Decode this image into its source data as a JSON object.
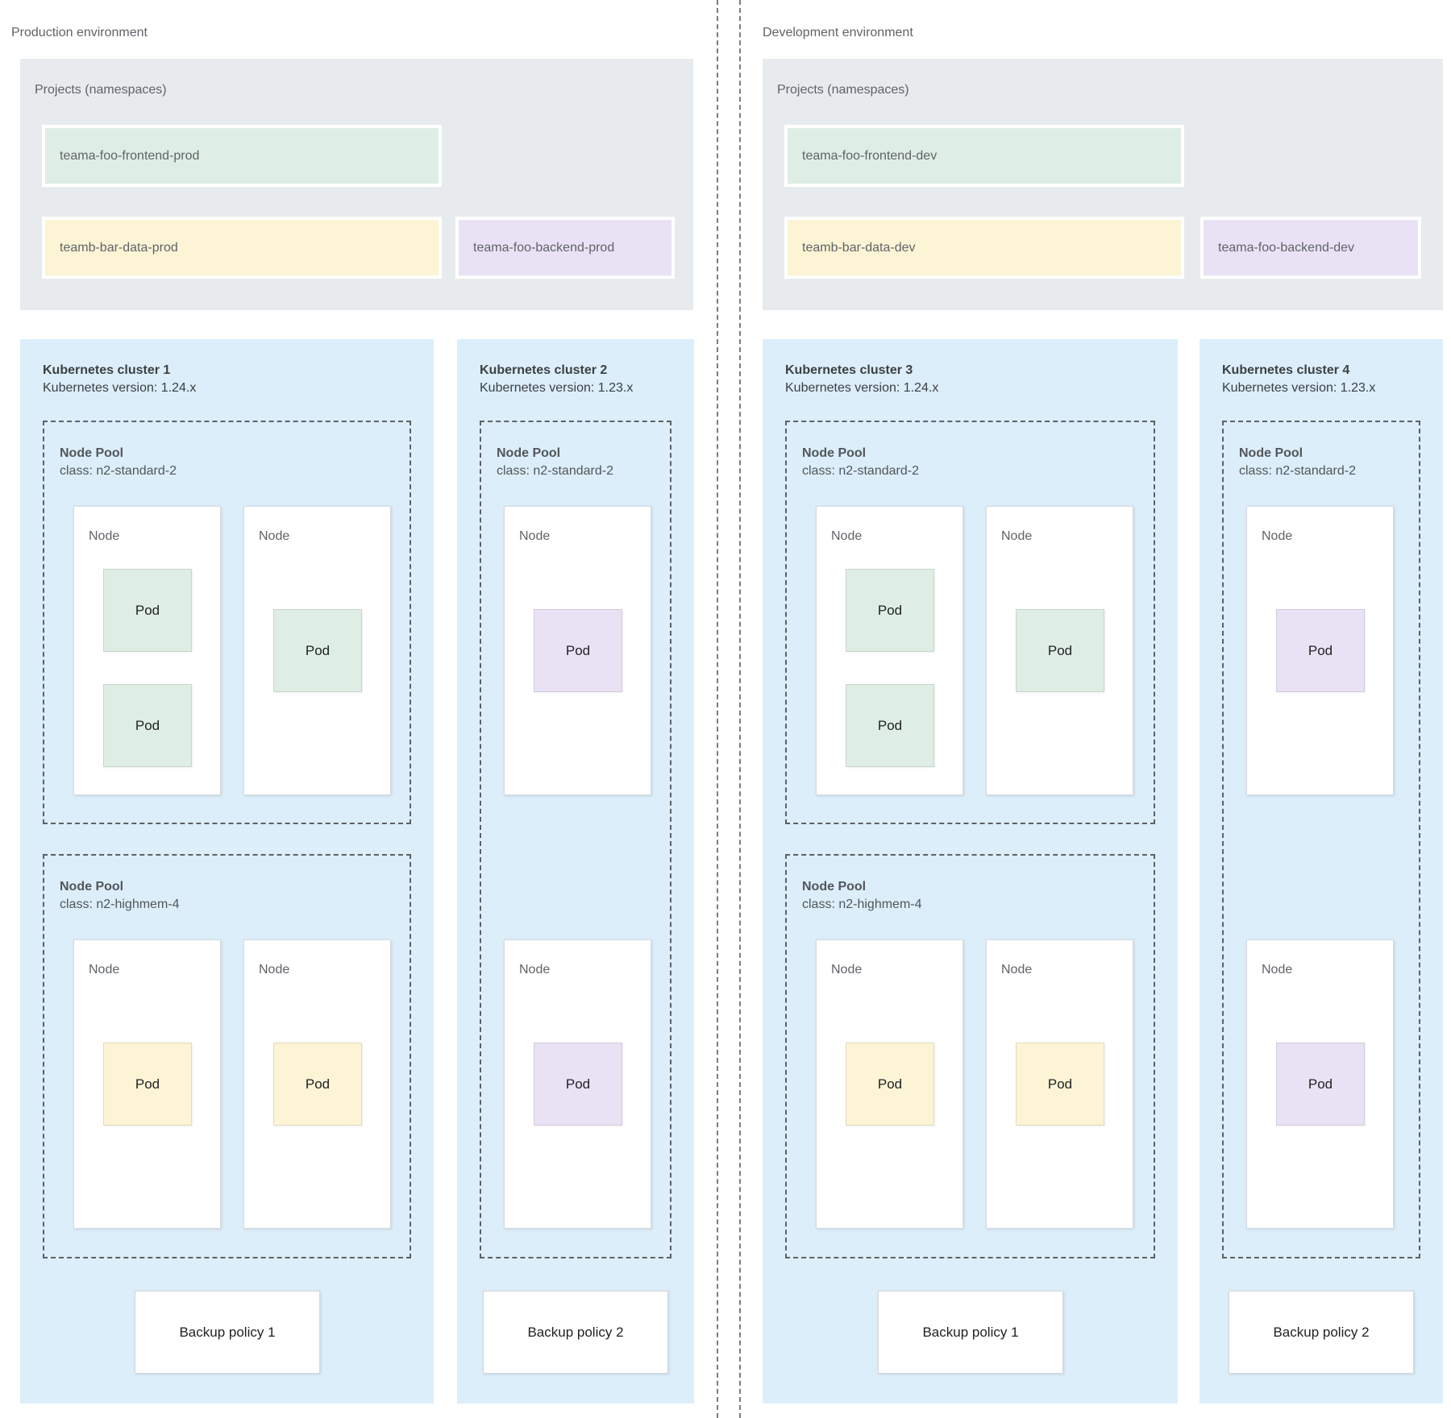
{
  "diagram": {
    "colors": {
      "cluster_bg": "#dbeefa",
      "panel_bg": "#e8ebee",
      "green": "#dfeee5",
      "yellow": "#fcf4d5",
      "purple": "#e9e2f4"
    }
  },
  "environments": [
    {
      "label": "Production environment",
      "projects": {
        "title": "Projects (namespaces)",
        "namespaces": [
          {
            "name": "teama-foo-frontend-prod",
            "color": "green",
            "row": 1,
            "slot": "wide"
          },
          {
            "name": "teamb-bar-data-prod",
            "color": "yellow",
            "row": 2,
            "slot": "wide"
          },
          {
            "name": "teama-foo-backend-prod",
            "color": "purple",
            "row": 2,
            "slot": "right"
          }
        ]
      },
      "clusters": [
        {
          "title": "Kubernetes cluster 1",
          "version": "Kubernetes version: 1.24.x",
          "backup_policy": "Backup policy 1",
          "node_pools": [
            {
              "label": "Node Pool",
              "machine_class": "class: n2-standard-2",
              "span": "top",
              "nodes": [
                {
                  "label": "Node",
                  "pods": [
                    {
                      "label": "Pod",
                      "color": "green",
                      "slot": "upper"
                    },
                    {
                      "label": "Pod",
                      "color": "green",
                      "slot": "lower"
                    }
                  ]
                },
                {
                  "label": "Node",
                  "pods": [
                    {
                      "label": "Pod",
                      "color": "green",
                      "slot": "solo"
                    }
                  ]
                }
              ]
            },
            {
              "label": "Node Pool",
              "machine_class": "class: n2-highmem-4",
              "span": "bottom",
              "nodes": [
                {
                  "label": "Node",
                  "pods": [
                    {
                      "label": "Pod",
                      "color": "yellow",
                      "slot": "solo"
                    }
                  ]
                },
                {
                  "label": "Node",
                  "pods": [
                    {
                      "label": "Pod",
                      "color": "yellow",
                      "slot": "solo"
                    }
                  ]
                }
              ]
            }
          ]
        },
        {
          "title": "Kubernetes cluster 2",
          "version": "Kubernetes version: 1.23.x",
          "backup_policy": "Backup policy 2",
          "node_pools": [
            {
              "label": "Node Pool",
              "machine_class": "class: n2-standard-2",
              "span": "full",
              "nodes": [
                {
                  "label": "Node",
                  "pods": [
                    {
                      "label": "Pod",
                      "color": "purple",
                      "slot": "solo"
                    }
                  ]
                },
                {
                  "label": "Node",
                  "pods": [
                    {
                      "label": "Pod",
                      "color": "purple",
                      "slot": "solo"
                    }
                  ]
                }
              ]
            }
          ]
        }
      ]
    },
    {
      "label": "Development environment",
      "projects": {
        "title": "Projects (namespaces)",
        "namespaces": [
          {
            "name": "teama-foo-frontend-dev",
            "color": "green",
            "row": 1,
            "slot": "wide"
          },
          {
            "name": "teamb-bar-data-dev",
            "color": "yellow",
            "row": 2,
            "slot": "wide"
          },
          {
            "name": "teama-foo-backend-dev",
            "color": "purple",
            "row": 2,
            "slot": "right"
          }
        ]
      },
      "clusters": [
        {
          "title": "Kubernetes cluster 3",
          "version": "Kubernetes version: 1.24.x",
          "backup_policy": "Backup policy 1",
          "node_pools": [
            {
              "label": "Node Pool",
              "machine_class": "class: n2-standard-2",
              "span": "top",
              "nodes": [
                {
                  "label": "Node",
                  "pods": [
                    {
                      "label": "Pod",
                      "color": "green",
                      "slot": "upper"
                    },
                    {
                      "label": "Pod",
                      "color": "green",
                      "slot": "lower"
                    }
                  ]
                },
                {
                  "label": "Node",
                  "pods": [
                    {
                      "label": "Pod",
                      "color": "green",
                      "slot": "solo"
                    }
                  ]
                }
              ]
            },
            {
              "label": "Node Pool",
              "machine_class": "class: n2-highmem-4",
              "span": "bottom",
              "nodes": [
                {
                  "label": "Node",
                  "pods": [
                    {
                      "label": "Pod",
                      "color": "yellow",
                      "slot": "solo"
                    }
                  ]
                },
                {
                  "label": "Node",
                  "pods": [
                    {
                      "label": "Pod",
                      "color": "yellow",
                      "slot": "solo"
                    }
                  ]
                }
              ]
            }
          ]
        },
        {
          "title": "Kubernetes cluster 4",
          "version": "Kubernetes version: 1.23.x",
          "backup_policy": "Backup policy 2",
          "node_pools": [
            {
              "label": "Node Pool",
              "machine_class": "class: n2-standard-2",
              "span": "full",
              "nodes": [
                {
                  "label": "Node",
                  "pods": [
                    {
                      "label": "Pod",
                      "color": "purple",
                      "slot": "solo"
                    }
                  ]
                },
                {
                  "label": "Node",
                  "pods": [
                    {
                      "label": "Pod",
                      "color": "purple",
                      "slot": "solo"
                    }
                  ]
                }
              ]
            }
          ]
        }
      ]
    }
  ]
}
